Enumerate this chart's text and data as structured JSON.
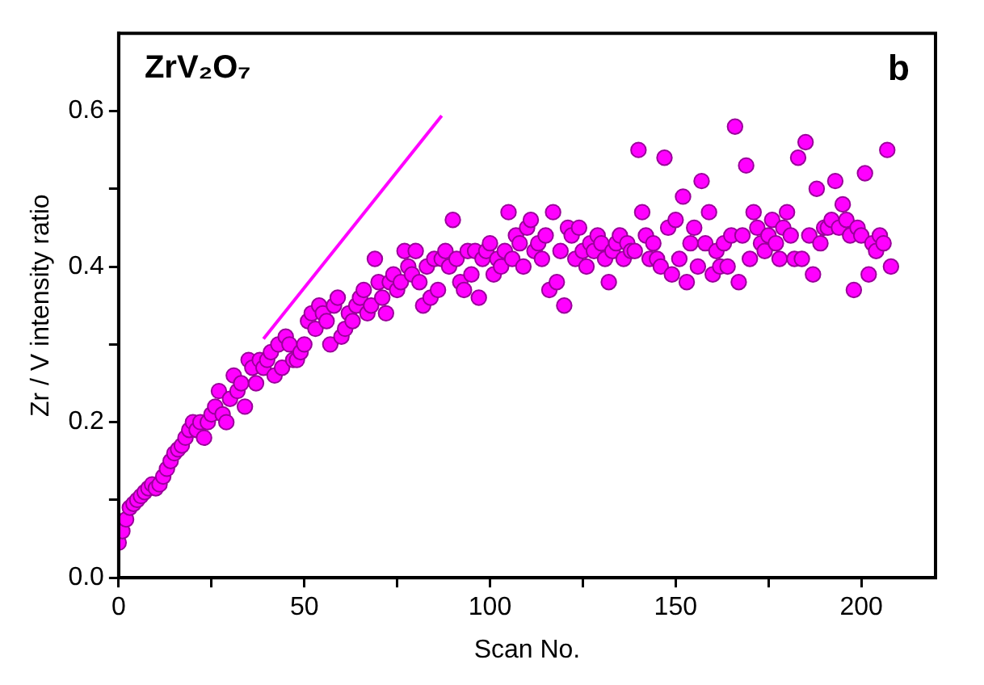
{
  "chart_data": {
    "type": "scatter",
    "title": "ZrV₂O₇",
    "annotations": [
      "b"
    ],
    "xlabel": "Scan No.",
    "ylabel": "Zr / V intensity ratio",
    "xlim": [
      0,
      220
    ],
    "ylim": [
      0,
      0.7
    ],
    "xticks": [
      0,
      {
        "value": 25,
        "label": null
      },
      50,
      {
        "value": 75,
        "label": null
      },
      100,
      {
        "value": 125,
        "label": null
      },
      150,
      {
        "value": 175,
        "label": null
      },
      200
    ],
    "yticks": [
      {
        "value": 0,
        "label": "0.0"
      },
      {
        "value": 0.1,
        "label": null
      },
      0.2,
      {
        "value": 0.3,
        "label": null
      },
      0.4,
      {
        "value": 0.5,
        "label": null
      },
      0.6
    ],
    "series": [
      {
        "type": "scatter",
        "color": "#ff00ff",
        "marker": "circle",
        "x": [
          0,
          1,
          2,
          3,
          4,
          5,
          6,
          7,
          8,
          9,
          10,
          11,
          12,
          13,
          14,
          15,
          16,
          17,
          18,
          19,
          20,
          21,
          22,
          23,
          24,
          25,
          26,
          27,
          28,
          29,
          30,
          31,
          32,
          33,
          34,
          35,
          36,
          37,
          38,
          39,
          40,
          41,
          42,
          43,
          44,
          45,
          46,
          47,
          48,
          49,
          50,
          51,
          52,
          53,
          54,
          55,
          56,
          57,
          58,
          59,
          60,
          61,
          62,
          63,
          64,
          65,
          66,
          67,
          68,
          69,
          70,
          71,
          72,
          73,
          74,
          75,
          76,
          77,
          78,
          79,
          80,
          81,
          82,
          83,
          84,
          85,
          86,
          87,
          88,
          89,
          90,
          91,
          92,
          93,
          94,
          95,
          96,
          97,
          98,
          99,
          100,
          101,
          102,
          103,
          104,
          105,
          106,
          107,
          108,
          109,
          110,
          111,
          112,
          113,
          114,
          115,
          116,
          117,
          118,
          119,
          120,
          121,
          122,
          123,
          124,
          125,
          126,
          127,
          128,
          129,
          130,
          131,
          132,
          133,
          134,
          135,
          136,
          137,
          138,
          139,
          140,
          141,
          142,
          143,
          144,
          145,
          146,
          147,
          148,
          149,
          150,
          151,
          152,
          153,
          154,
          155,
          156,
          157,
          158,
          159,
          160,
          161,
          162,
          163,
          164,
          165,
          166,
          167,
          168,
          169,
          170,
          171,
          172,
          173,
          174,
          175,
          176,
          177,
          178,
          179,
          180,
          181,
          182,
          183,
          184,
          185,
          186,
          187,
          188,
          189,
          190,
          191,
          192,
          193,
          194,
          195,
          196,
          197,
          198,
          199,
          200,
          201,
          202,
          203,
          204,
          205,
          206,
          207,
          208
        ],
        "values": [
          0.045,
          0.06,
          0.075,
          0.09,
          0.095,
          0.1,
          0.105,
          0.11,
          0.115,
          0.12,
          0.115,
          0.12,
          0.13,
          0.14,
          0.15,
          0.16,
          0.165,
          0.17,
          0.18,
          0.19,
          0.2,
          0.19,
          0.2,
          0.18,
          0.2,
          0.21,
          0.22,
          0.24,
          0.21,
          0.2,
          0.23,
          0.26,
          0.24,
          0.25,
          0.22,
          0.28,
          0.27,
          0.25,
          0.28,
          0.27,
          0.28,
          0.29,
          0.26,
          0.3,
          0.27,
          0.31,
          0.3,
          0.28,
          0.28,
          0.29,
          0.3,
          0.33,
          0.34,
          0.32,
          0.35,
          0.34,
          0.33,
          0.3,
          0.35,
          0.36,
          0.31,
          0.32,
          0.34,
          0.33,
          0.35,
          0.36,
          0.37,
          0.34,
          0.35,
          0.41,
          0.38,
          0.36,
          0.34,
          0.38,
          0.39,
          0.37,
          0.38,
          0.42,
          0.4,
          0.39,
          0.42,
          0.38,
          0.35,
          0.4,
          0.36,
          0.41,
          0.37,
          0.41,
          0.42,
          0.4,
          0.46,
          0.41,
          0.38,
          0.37,
          0.42,
          0.39,
          0.42,
          0.36,
          0.41,
          0.42,
          0.43,
          0.39,
          0.41,
          0.4,
          0.42,
          0.47,
          0.41,
          0.44,
          0.43,
          0.4,
          0.45,
          0.46,
          0.42,
          0.43,
          0.41,
          0.44,
          0.37,
          0.47,
          0.38,
          0.42,
          0.35,
          0.45,
          0.44,
          0.41,
          0.45,
          0.42,
          0.4,
          0.43,
          0.42,
          0.44,
          0.43,
          0.41,
          0.38,
          0.42,
          0.43,
          0.44,
          0.41,
          0.43,
          0.42,
          0.42,
          0.55,
          0.47,
          0.44,
          0.41,
          0.43,
          0.41,
          0.4,
          0.54,
          0.45,
          0.39,
          0.46,
          0.41,
          0.49,
          0.38,
          0.43,
          0.45,
          0.4,
          0.51,
          0.43,
          0.47,
          0.39,
          0.42,
          0.4,
          0.43,
          0.4,
          0.44,
          0.58,
          0.38,
          0.44,
          0.53,
          0.41,
          0.47,
          0.45,
          0.43,
          0.42,
          0.44,
          0.46,
          0.43,
          0.41,
          0.45,
          0.47,
          0.44,
          0.41,
          0.54,
          0.41,
          0.56,
          0.44,
          0.39,
          0.5,
          0.43,
          0.45,
          0.45,
          0.46,
          0.51,
          0.45,
          0.48,
          0.46,
          0.44,
          0.37,
          0.45,
          0.44,
          0.52,
          0.39,
          0.43,
          0.42,
          0.44,
          0.43,
          0.55,
          0.4
        ]
      },
      {
        "type": "line",
        "color": "#ff00ff",
        "line_style": "solid",
        "x": [
          39,
          87
        ],
        "values": [
          0.307,
          0.594
        ]
      }
    ]
  }
}
